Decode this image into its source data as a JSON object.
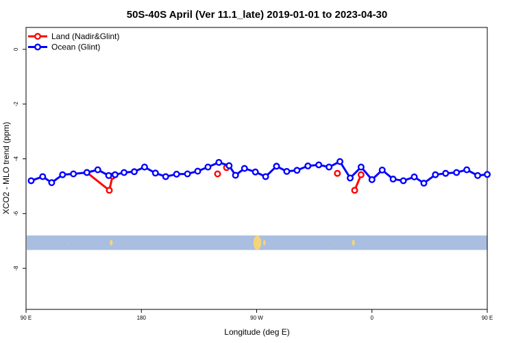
{
  "chart_data": {
    "type": "line",
    "title": "50S-40S April (Ver 11.1_late)   2019-01-01 to 2023-04-30",
    "xlabel": "Longitude (deg E)",
    "ylabel": "XCO2 - MLO trend (ppm)",
    "xlim": [
      90,
      450
    ],
    "ylim": [
      0.8,
      -9.5
    ],
    "x_ticks": [
      {
        "value": 90,
        "label": "90 E"
      },
      {
        "value": 180,
        "label": "180"
      },
      {
        "value": 270,
        "label": "90 W"
      },
      {
        "value": 360,
        "label": "0"
      },
      {
        "value": 450,
        "label": "90 E"
      },
      {
        "value": 540,
        "label": "180"
      }
    ],
    "y_ticks": [
      {
        "value": 0,
        "label": "0"
      },
      {
        "value": -2,
        "label": "-2"
      },
      {
        "value": -4,
        "label": "-4"
      },
      {
        "value": -6,
        "label": "-6"
      },
      {
        "value": -8,
        "label": "-8"
      }
    ],
    "grid": false,
    "legend_position": "top-left",
    "series": [
      {
        "name": "Land (Nadir&Glint)",
        "color": "#ff0000",
        "points": [
          [
            137.5,
            -4.5
          ],
          [
            155.0,
            -5.15
          ],
          [
            157.5,
            -4.63
          ],
          [
            239.5,
            -4.55
          ],
          [
            246.5,
            -4.32
          ],
          [
            333.0,
            -4.53
          ],
          [
            346.5,
            -5.15
          ],
          [
            351.5,
            -4.58
          ]
        ],
        "segments": [
          [
            0,
            1,
            2
          ],
          [
            3
          ],
          [
            4
          ],
          [
            5
          ],
          [
            6,
            7
          ]
        ]
      },
      {
        "name": "Ocean (Glint)",
        "color": "#0000ff",
        "points": [
          [
            94.0,
            -4.8
          ],
          [
            103.0,
            -4.65
          ],
          [
            110.0,
            -4.87
          ],
          [
            118.5,
            -4.58
          ],
          [
            127.0,
            -4.55
          ],
          [
            137.5,
            -4.5
          ],
          [
            146.0,
            -4.4
          ],
          [
            154.5,
            -4.61
          ],
          [
            159.5,
            -4.58
          ],
          [
            166.5,
            -4.5
          ],
          [
            174.5,
            -4.47
          ],
          [
            182.5,
            -4.3
          ],
          [
            191.0,
            -4.52
          ],
          [
            199.0,
            -4.65
          ],
          [
            207.5,
            -4.56
          ],
          [
            216.0,
            -4.55
          ],
          [
            224.0,
            -4.45
          ],
          [
            232.0,
            -4.3
          ],
          [
            240.5,
            -4.13
          ],
          [
            248.5,
            -4.25
          ],
          [
            253.5,
            -4.6
          ],
          [
            260.5,
            -4.35
          ],
          [
            269.0,
            -4.48
          ],
          [
            277.0,
            -4.65
          ],
          [
            285.5,
            -4.27
          ],
          [
            293.5,
            -4.46
          ],
          [
            301.5,
            -4.42
          ],
          [
            310.0,
            -4.26
          ],
          [
            318.5,
            -4.22
          ],
          [
            326.5,
            -4.3
          ],
          [
            335.0,
            -4.1
          ],
          [
            343.0,
            -4.7
          ],
          [
            351.5,
            -4.3
          ],
          [
            360.0,
            -4.76
          ],
          [
            368.0,
            -4.41
          ],
          [
            376.5,
            -4.74
          ],
          [
            384.5,
            -4.8
          ],
          [
            393.0,
            -4.66
          ],
          [
            400.5,
            -4.89
          ],
          [
            409.5,
            -4.58
          ],
          [
            417.5,
            -4.53
          ],
          [
            426.0,
            -4.5
          ],
          [
            434.0,
            -4.4
          ],
          [
            442.5,
            -4.61
          ],
          [
            450.0,
            -4.57
          ]
        ]
      }
    ],
    "land_mask_band": {
      "y_top": -6.8,
      "y_bottom": -7.33,
      "ocean_color": "#a9bee0",
      "land_color": "#f5d57a"
    }
  }
}
